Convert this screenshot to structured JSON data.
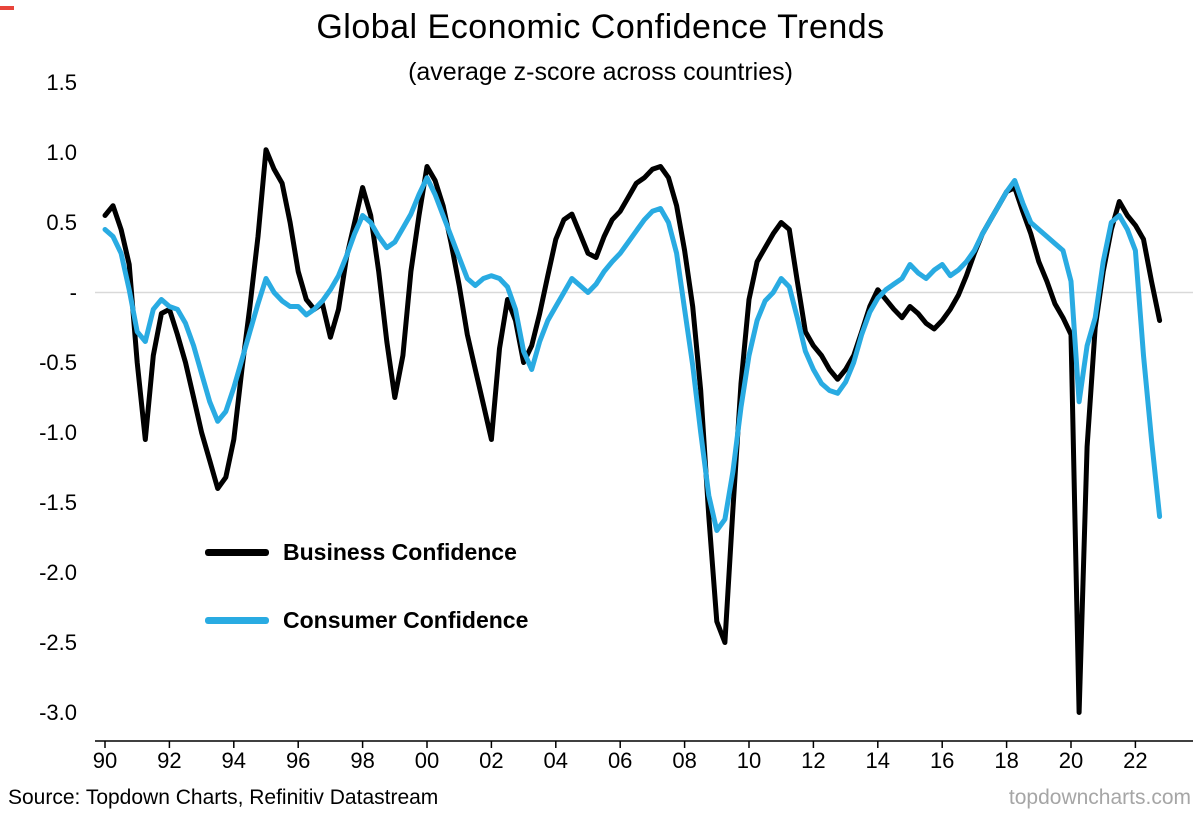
{
  "footer": {
    "source": "Source: Topdown Charts, Refinitiv Datastream",
    "watermark": "topdowncharts.com"
  },
  "chart_data": {
    "type": "line",
    "title": "Global Economic Confidence Trends",
    "subtitle": "(average z-score across countries)",
    "x_start": 1990,
    "x_step": 0.25,
    "xlim": [
      1989.7,
      2023.4
    ],
    "ylim": [
      -3.2,
      1.5
    ],
    "grid": "zero-line-only",
    "zero_line_color": "#d9d9d9",
    "legend_position": "inside-left",
    "xticks": {
      "labels": [
        "90",
        "92",
        "94",
        "96",
        "98",
        "00",
        "02",
        "04",
        "06",
        "08",
        "10",
        "12",
        "14",
        "16",
        "18",
        "20",
        "22"
      ],
      "years": [
        1990,
        1992,
        1994,
        1996,
        1998,
        2000,
        2002,
        2004,
        2006,
        2008,
        2010,
        2012,
        2014,
        2016,
        2018,
        2020,
        2022
      ]
    },
    "yticks": {
      "labels": [
        "1.5",
        "1.0",
        "0.5",
        "-",
        "-0.5",
        "-1.0",
        "-1.5",
        "-2.0",
        "-2.5",
        "-3.0"
      ],
      "values": [
        1.5,
        1.0,
        0.5,
        0,
        -0.5,
        -1.0,
        -1.5,
        -2.0,
        -2.5,
        -3.0
      ]
    },
    "series": [
      {
        "name": "Business Confidence",
        "color": "#000000",
        "values": [
          0.55,
          0.62,
          0.45,
          0.2,
          -0.5,
          -1.05,
          -0.45,
          -0.15,
          -0.12,
          -0.3,
          -0.5,
          -0.75,
          -1.0,
          -1.2,
          -1.4,
          -1.32,
          -1.05,
          -0.55,
          -0.1,
          0.4,
          1.02,
          0.88,
          0.78,
          0.5,
          0.15,
          -0.05,
          -0.12,
          -0.08,
          -0.32,
          -0.12,
          0.25,
          0.5,
          0.75,
          0.55,
          0.15,
          -0.35,
          -0.75,
          -0.45,
          0.15,
          0.55,
          0.9,
          0.8,
          0.62,
          0.35,
          0.05,
          -0.3,
          -0.55,
          -0.8,
          -1.05,
          -0.4,
          -0.05,
          -0.2,
          -0.5,
          -0.38,
          -0.15,
          0.12,
          0.38,
          0.52,
          0.56,
          0.42,
          0.28,
          0.25,
          0.4,
          0.52,
          0.58,
          0.68,
          0.78,
          0.82,
          0.88,
          0.9,
          0.82,
          0.62,
          0.3,
          -0.1,
          -0.7,
          -1.6,
          -2.35,
          -2.5,
          -1.55,
          -0.65,
          -0.05,
          0.22,
          0.32,
          0.42,
          0.5,
          0.45,
          0.08,
          -0.28,
          -0.38,
          -0.45,
          -0.55,
          -0.62,
          -0.55,
          -0.45,
          -0.28,
          -0.1,
          0.02,
          -0.05,
          -0.12,
          -0.18,
          -0.1,
          -0.15,
          -0.22,
          -0.26,
          -0.2,
          -0.12,
          -0.02,
          0.12,
          0.28,
          0.42,
          0.52,
          0.62,
          0.72,
          0.75,
          0.58,
          0.42,
          0.22,
          0.08,
          -0.08,
          -0.18,
          -0.3,
          -3.0,
          -1.1,
          -0.25,
          0.15,
          0.45,
          0.65,
          0.55,
          0.48,
          0.38,
          0.08,
          -0.2
        ]
      },
      {
        "name": "Consumer Confidence",
        "color": "#29ABE2",
        "values": [
          0.45,
          0.4,
          0.28,
          0.02,
          -0.28,
          -0.35,
          -0.12,
          -0.05,
          -0.1,
          -0.12,
          -0.22,
          -0.38,
          -0.58,
          -0.78,
          -0.92,
          -0.85,
          -0.68,
          -0.48,
          -0.28,
          -0.08,
          0.1,
          0.0,
          -0.06,
          -0.1,
          -0.1,
          -0.16,
          -0.12,
          -0.06,
          0.02,
          0.12,
          0.26,
          0.42,
          0.55,
          0.5,
          0.4,
          0.32,
          0.36,
          0.46,
          0.56,
          0.7,
          0.82,
          0.7,
          0.55,
          0.4,
          0.25,
          0.1,
          0.05,
          0.1,
          0.12,
          0.1,
          0.04,
          -0.12,
          -0.42,
          -0.55,
          -0.35,
          -0.2,
          -0.1,
          0.0,
          0.1,
          0.05,
          0.0,
          0.06,
          0.15,
          0.22,
          0.28,
          0.36,
          0.44,
          0.52,
          0.58,
          0.6,
          0.5,
          0.28,
          -0.12,
          -0.52,
          -1.0,
          -1.45,
          -1.7,
          -1.62,
          -1.28,
          -0.82,
          -0.45,
          -0.2,
          -0.06,
          0.0,
          0.1,
          0.04,
          -0.18,
          -0.42,
          -0.55,
          -0.65,
          -0.7,
          -0.72,
          -0.64,
          -0.5,
          -0.3,
          -0.14,
          -0.04,
          0.02,
          0.06,
          0.1,
          0.2,
          0.14,
          0.1,
          0.16,
          0.2,
          0.12,
          0.16,
          0.22,
          0.3,
          0.42,
          0.52,
          0.62,
          0.72,
          0.8,
          0.64,
          0.5,
          0.45,
          0.4,
          0.35,
          0.3,
          0.08,
          -0.78,
          -0.38,
          -0.18,
          0.22,
          0.5,
          0.55,
          0.45,
          0.3,
          -0.45,
          -1.05,
          -1.6
        ]
      }
    ]
  }
}
